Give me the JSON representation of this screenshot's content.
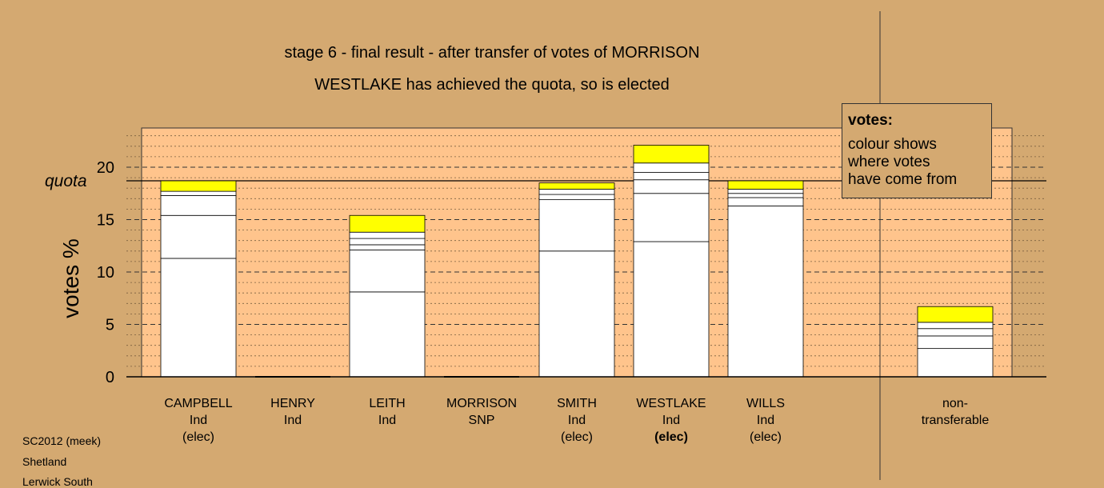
{
  "header": {
    "title": "stage 6 - final result - after transfer of votes of MORRISON",
    "subtitle": "WESTLAKE has achieved the quota, so is elected"
  },
  "legend": {
    "title": "votes:",
    "lines": [
      "colour shows",
      "where votes",
      "have come from"
    ]
  },
  "footer": {
    "lines": [
      "SC2012 (meek)",
      "Shetland",
      "Lerwick South"
    ]
  },
  "colors": {
    "background": "#d4a971",
    "plot_area": "#ffc48c",
    "bar_base": "#ffffff",
    "transfer": "#ffff00",
    "line": "#000000"
  },
  "chart_data": {
    "type": "bar",
    "stacked": true,
    "ylabel": "votes %",
    "quota_label": "quota",
    "quota": 18.7,
    "ylim": [
      0,
      23.5
    ],
    "yticks": [
      0,
      5,
      10,
      15,
      20
    ],
    "grid": "dashed at major ticks, dotted minor",
    "legend_placement": "top-right",
    "candidates": [
      {
        "name": "CAMPBELL",
        "party": "Ind",
        "status": "(elec)",
        "status_bold": false,
        "segments": [
          11.3,
          4.1,
          1.9,
          0.4
        ],
        "transfer": 1.0
      },
      {
        "name": "HENRY",
        "party": "Ind",
        "status": "",
        "status_bold": false,
        "segments": [],
        "transfer": 0
      },
      {
        "name": "LEITH",
        "party": "Ind",
        "status": "",
        "status_bold": false,
        "segments": [
          8.1,
          4.0,
          0.5,
          0.6,
          0.6
        ],
        "transfer": 1.6
      },
      {
        "name": "MORRISON",
        "party": "SNP",
        "status": "",
        "status_bold": false,
        "segments": [],
        "transfer": 0
      },
      {
        "name": "SMITH",
        "party": "Ind",
        "status": "(elec)",
        "status_bold": false,
        "segments": [
          12.0,
          4.9,
          0.5,
          0.5
        ],
        "transfer": 0.6
      },
      {
        "name": "WESTLAKE",
        "party": "Ind",
        "status": "(elec)",
        "status_bold": true,
        "segments": [
          12.9,
          4.6,
          1.3,
          0.7,
          0.9
        ],
        "transfer": 1.7
      },
      {
        "name": "WILLS",
        "party": "Ind",
        "status": "(elec)",
        "status_bold": false,
        "segments": [
          16.3,
          0.8,
          0.4,
          0.4
        ],
        "transfer": 0.8
      }
    ],
    "nontransferable": {
      "label_line1": "non-",
      "label_line2": "transferable",
      "segments": [
        2.7,
        1.2,
        0.7,
        0.6
      ],
      "transfer": 1.5
    }
  }
}
